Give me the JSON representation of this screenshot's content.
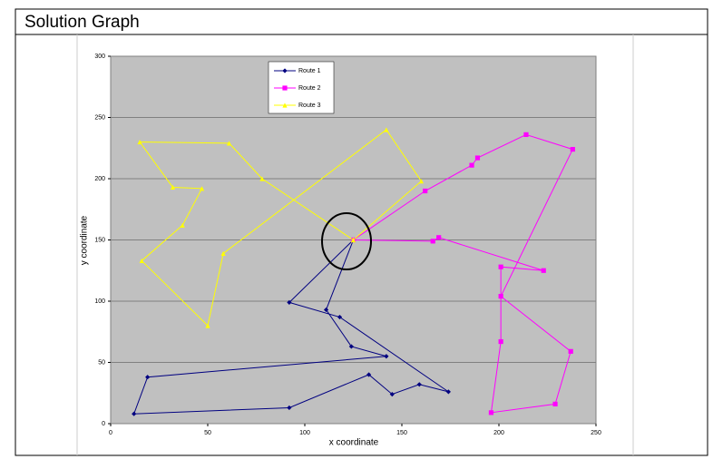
{
  "chart_data": {
    "type": "line",
    "title": "Solution Graph",
    "x_label": "x coordinate",
    "y_label": "y coordinate",
    "xlim": [
      0,
      250
    ],
    "xticks": [
      0,
      50,
      100,
      150,
      200,
      250
    ],
    "ylim": [
      0,
      300
    ],
    "yticks": [
      0,
      50,
      100,
      150,
      200,
      250,
      300
    ],
    "grid": true,
    "legend": "top",
    "series": [
      {
        "name": "Route 1",
        "color": "#000080",
        "marker": "diamond",
        "x": [
          125,
          92,
          118,
          174,
          159,
          145,
          133,
          92,
          12,
          19,
          142,
          124,
          111,
          125
        ],
        "values": [
          150,
          99,
          87,
          26,
          32,
          24,
          40,
          13,
          8,
          38,
          55,
          63,
          93,
          150
        ]
      },
      {
        "name": "Route 2",
        "color": "#ff00ff",
        "marker": "square",
        "x": [
          125,
          162,
          186,
          189,
          214,
          238,
          201,
          237,
          229,
          196,
          201,
          201,
          223,
          169,
          166,
          125
        ],
        "values": [
          150,
          190,
          211,
          217,
          236,
          224,
          104,
          59,
          16,
          9,
          67,
          128,
          125,
          152,
          149,
          150
        ]
      },
      {
        "name": "Route 3",
        "color": "#ffff00",
        "marker": "triangle",
        "x": [
          125,
          78,
          61,
          15,
          32,
          47,
          37,
          16,
          50,
          58,
          142,
          160,
          125
        ],
        "values": [
          150,
          200,
          229,
          230,
          193,
          192,
          162,
          133,
          80,
          139,
          240,
          198,
          150
        ]
      }
    ]
  }
}
